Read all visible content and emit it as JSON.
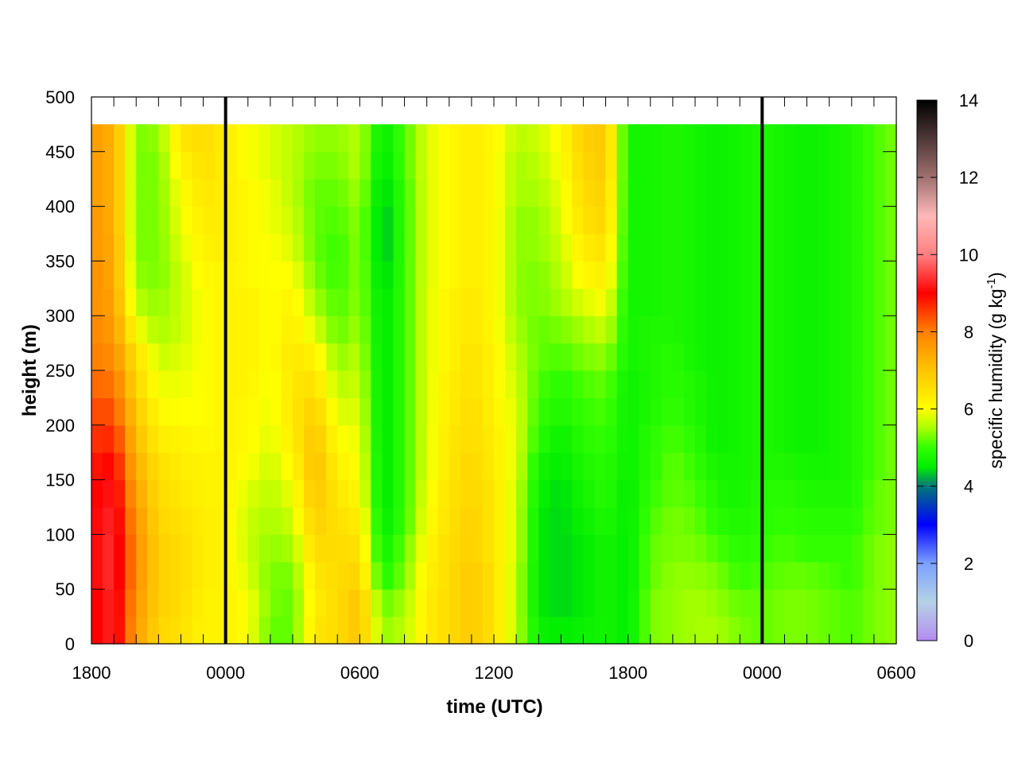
{
  "chart_data": {
    "type": "heatmap",
    "title": "",
    "xlabel": "time (UTC)",
    "ylabel": "height (m)",
    "x_tick_labels": [
      "1800",
      "0000",
      "0600",
      "1200",
      "1800",
      "0000",
      "0600"
    ],
    "x_range_hours": [
      0,
      36
    ],
    "y_ticks": [
      0,
      50,
      100,
      150,
      200,
      250,
      300,
      350,
      400,
      450,
      500
    ],
    "ylim": [
      0,
      500
    ],
    "data_top_height": 475,
    "day_boundaries_hours": [
      6,
      30
    ],
    "colorbar": {
      "label": "specific humidity (g kg",
      "label_sup": "-1",
      "label_close": ")",
      "ticks": [
        0,
        2,
        4,
        6,
        8,
        10,
        12,
        14
      ],
      "range": [
        0,
        14
      ]
    },
    "heights": [
      0,
      25,
      50,
      75,
      100,
      125,
      150,
      175,
      200,
      225,
      250,
      275,
      300,
      325,
      350,
      375,
      400,
      425,
      450,
      475
    ],
    "humidity_profiles": [
      {
        "t": 0,
        "q": [
          8.9,
          8.9,
          9.0,
          9.0,
          9.0,
          8.9,
          8.8,
          8.6,
          8.4,
          8.2,
          8.0,
          7.9,
          7.8,
          7.8,
          7.7,
          7.7,
          7.6,
          7.6,
          7.6,
          7.5
        ]
      },
      {
        "t": 1,
        "q": [
          9.3,
          9.3,
          9.4,
          9.4,
          9.3,
          9.2,
          9.0,
          8.7,
          8.4,
          8.1,
          7.8,
          7.6,
          7.5,
          7.4,
          7.4,
          7.3,
          7.3,
          7.3,
          7.3,
          7.2
        ]
      },
      {
        "t": 2,
        "q": [
          7.6,
          7.7,
          7.8,
          7.8,
          7.7,
          7.5,
          7.3,
          7.1,
          6.9,
          6.7,
          6.5,
          6.0,
          5.6,
          5.4,
          5.3,
          5.3,
          5.3,
          5.3,
          5.3,
          5.3
        ]
      },
      {
        "t": 3,
        "q": [
          6.7,
          6.8,
          6.8,
          6.8,
          6.7,
          6.6,
          6.5,
          6.3,
          6.1,
          5.9,
          5.7,
          5.5,
          5.4,
          5.3,
          5.3,
          5.3,
          5.3,
          5.3,
          5.4,
          5.5
        ]
      },
      {
        "t": 4,
        "q": [
          6.5,
          6.6,
          6.6,
          6.6,
          6.5,
          6.4,
          6.3,
          6.2,
          6.0,
          5.9,
          5.8,
          5.7,
          5.7,
          5.7,
          5.8,
          5.9,
          6.0,
          6.2,
          6.4,
          6.5
        ]
      },
      {
        "t": 5,
        "q": [
          6.2,
          6.2,
          6.3,
          6.3,
          6.3,
          6.2,
          6.2,
          6.1,
          6.0,
          6.0,
          6.0,
          6.0,
          6.0,
          6.1,
          6.2,
          6.3,
          6.4,
          6.5,
          6.6,
          6.7
        ]
      },
      {
        "t": 6,
        "q": [
          6.2,
          6.2,
          6.2,
          6.2,
          6.2,
          6.2,
          6.2,
          6.2,
          6.2,
          6.2,
          6.2,
          6.2,
          6.2,
          6.2,
          6.3,
          6.3,
          6.3,
          6.3,
          6.3,
          6.3
        ]
      },
      {
        "t": 7,
        "q": [
          6.0,
          6.0,
          5.8,
          5.7,
          5.7,
          5.8,
          6.0,
          6.1,
          6.1,
          6.2,
          6.2,
          6.2,
          6.2,
          6.1,
          6.1,
          6.1,
          6.1,
          6.0,
          6.0,
          6.0
        ]
      },
      {
        "t": 8,
        "q": [
          5.2,
          5.3,
          5.3,
          5.4,
          5.5,
          5.6,
          5.7,
          5.8,
          5.9,
          5.9,
          6.0,
          6.0,
          6.0,
          6.0,
          6.0,
          5.9,
          5.9,
          5.8,
          5.8,
          5.8
        ]
      },
      {
        "t": 9,
        "q": [
          5.2,
          5.2,
          5.3,
          5.5,
          5.7,
          5.9,
          6.1,
          6.3,
          6.4,
          6.4,
          6.4,
          6.3,
          6.2,
          6.0,
          5.8,
          5.7,
          5.6,
          5.6,
          5.6,
          5.7
        ]
      },
      {
        "t": 10,
        "q": [
          6.4,
          6.3,
          6.4,
          6.6,
          6.8,
          7.0,
          7.1,
          7.0,
          6.8,
          6.5,
          6.2,
          5.8,
          5.5,
          5.3,
          5.2,
          5.2,
          5.2,
          5.3,
          5.4,
          5.6
        ]
      },
      {
        "t": 11,
        "q": [
          6.6,
          6.6,
          6.6,
          6.6,
          6.5,
          6.4,
          6.2,
          6.0,
          5.8,
          5.6,
          5.4,
          5.2,
          5.1,
          5.0,
          5.0,
          5.1,
          5.2,
          5.3,
          5.4,
          5.5
        ]
      },
      {
        "t": 12,
        "q": [
          7.0,
          7.0,
          6.7,
          6.5,
          6.3,
          6.1,
          6.0,
          5.9,
          5.8,
          5.7,
          5.6,
          5.5,
          5.4,
          5.4,
          5.4,
          5.4,
          5.5,
          5.6,
          5.6,
          5.6
        ]
      },
      {
        "t": 13,
        "q": [
          5.4,
          5.2,
          4.8,
          4.6,
          4.5,
          4.4,
          4.4,
          4.4,
          4.4,
          4.4,
          4.4,
          4.4,
          4.4,
          4.3,
          4.2,
          4.2,
          4.3,
          4.4,
          4.5,
          4.6
        ]
      },
      {
        "t": 14,
        "q": [
          5.6,
          5.5,
          5.3,
          5.2,
          5.0,
          5.0,
          5.0,
          5.0,
          5.0,
          5.0,
          5.0,
          5.0,
          5.0,
          5.0,
          5.0,
          5.0,
          5.0,
          5.1,
          5.1,
          5.1
        ]
      },
      {
        "t": 15,
        "q": [
          6.3,
          6.3,
          6.2,
          6.1,
          6.0,
          5.9,
          5.8,
          5.8,
          5.8,
          5.8,
          5.8,
          5.8,
          5.8,
          5.8,
          5.8,
          5.8,
          5.8,
          5.8,
          5.8,
          5.8
        ]
      },
      {
        "t": 16,
        "q": [
          6.6,
          6.6,
          6.6,
          6.6,
          6.5,
          6.5,
          6.4,
          6.4,
          6.3,
          6.3,
          6.2,
          6.2,
          6.2,
          6.1,
          6.1,
          6.1,
          6.1,
          6.1,
          6.1,
          6.1
        ]
      },
      {
        "t": 17,
        "q": [
          6.9,
          6.9,
          6.9,
          6.8,
          6.8,
          6.7,
          6.7,
          6.6,
          6.6,
          6.5,
          6.5,
          6.4,
          6.4,
          6.3,
          6.3,
          6.3,
          6.3,
          6.3,
          6.3,
          6.3
        ]
      },
      {
        "t": 18,
        "q": [
          6.5,
          6.5,
          6.5,
          6.4,
          6.4,
          6.4,
          6.3,
          6.3,
          6.2,
          6.2,
          6.2,
          6.1,
          6.1,
          6.1,
          6.1,
          6.1,
          6.1,
          6.1,
          6.1,
          6.1
        ]
      },
      {
        "t": 19,
        "q": [
          5.6,
          5.6,
          5.6,
          5.7,
          5.7,
          5.7,
          5.8,
          5.8,
          5.8,
          5.7,
          5.6,
          5.5,
          5.4,
          5.4,
          5.4,
          5.4,
          5.5,
          5.5,
          5.6,
          5.6
        ]
      },
      {
        "t": 20,
        "q": [
          4.6,
          4.5,
          4.5,
          4.5,
          4.5,
          4.6,
          4.7,
          4.9,
          5.0,
          5.1,
          5.2,
          5.2,
          5.3,
          5.3,
          5.4,
          5.4,
          5.5,
          5.6,
          5.7,
          5.7
        ]
      },
      {
        "t": 21,
        "q": [
          4.5,
          4.4,
          4.4,
          4.4,
          4.4,
          4.4,
          4.5,
          4.6,
          4.8,
          4.9,
          5.1,
          5.3,
          5.5,
          5.6,
          5.7,
          5.8,
          5.9,
          6.0,
          6.1,
          6.1
        ]
      },
      {
        "t": 22,
        "q": [
          4.6,
          4.5,
          4.5,
          4.5,
          4.6,
          4.7,
          4.8,
          4.9,
          5.0,
          5.1,
          5.3,
          5.5,
          5.8,
          6.1,
          6.3,
          6.5,
          6.6,
          6.7,
          6.8,
          6.8
        ]
      },
      {
        "t": 23,
        "q": [
          4.7,
          4.7,
          4.7,
          4.7,
          4.8,
          4.9,
          4.9,
          5.0,
          5.1,
          5.2,
          5.4,
          5.7,
          6.0,
          6.3,
          6.5,
          6.7,
          6.8,
          6.9,
          6.9,
          6.9
        ]
      },
      {
        "t": 24,
        "q": [
          4.5,
          4.5,
          4.5,
          4.5,
          4.5,
          4.5,
          4.6,
          4.6,
          4.6,
          4.6,
          4.7,
          4.7,
          4.7,
          4.7,
          4.7,
          4.7,
          4.7,
          4.7,
          4.7,
          4.7
        ]
      },
      {
        "t": 25,
        "q": [
          5.3,
          5.3,
          5.2,
          5.2,
          5.1,
          5.0,
          4.9,
          4.9,
          4.8,
          4.8,
          4.8,
          4.8,
          4.7,
          4.7,
          4.7,
          4.7,
          4.7,
          4.7,
          4.7,
          4.7
        ]
      },
      {
        "t": 26,
        "q": [
          5.4,
          5.4,
          5.4,
          5.3,
          5.3,
          5.2,
          5.2,
          5.1,
          5.0,
          4.9,
          4.9,
          4.8,
          4.8,
          4.8,
          4.8,
          4.8,
          4.8,
          4.8,
          4.8,
          4.8
        ]
      },
      {
        "t": 27,
        "q": [
          5.5,
          5.5,
          5.4,
          5.3,
          5.2,
          5.1,
          5.0,
          4.9,
          4.8,
          4.8,
          4.7,
          4.7,
          4.7,
          4.7,
          4.7,
          4.7,
          4.7,
          4.7,
          4.7,
          4.7
        ]
      },
      {
        "t": 28,
        "q": [
          5.5,
          5.4,
          5.3,
          5.1,
          4.9,
          4.8,
          4.7,
          4.6,
          4.6,
          4.6,
          4.6,
          4.6,
          4.6,
          4.6,
          4.6,
          4.6,
          4.6,
          4.6,
          4.6,
          4.6
        ]
      },
      {
        "t": 29,
        "q": [
          5.3,
          5.2,
          5.0,
          4.9,
          4.8,
          4.7,
          4.7,
          4.7,
          4.7,
          4.7,
          4.7,
          4.7,
          4.7,
          4.7,
          4.7,
          4.7,
          4.7,
          4.7,
          4.7,
          4.7
        ]
      },
      {
        "t": 30,
        "q": [
          5.2,
          5.2,
          5.1,
          5.0,
          4.9,
          4.9,
          4.8,
          4.8,
          4.8,
          4.8,
          4.8,
          4.8,
          4.8,
          4.8,
          4.8,
          4.8,
          4.8,
          4.8,
          4.8,
          4.8
        ]
      },
      {
        "t": 31,
        "q": [
          5.3,
          5.3,
          5.2,
          5.1,
          5.0,
          4.9,
          4.8,
          4.7,
          4.7,
          4.7,
          4.7,
          4.7,
          4.7,
          4.7,
          4.7,
          4.7,
          4.7,
          4.7,
          4.7,
          4.7
        ]
      },
      {
        "t": 32,
        "q": [
          5.3,
          5.3,
          5.2,
          5.0,
          4.9,
          4.8,
          4.7,
          4.6,
          4.6,
          4.6,
          4.6,
          4.6,
          4.6,
          4.6,
          4.6,
          4.6,
          4.6,
          4.6,
          4.6,
          4.6
        ]
      },
      {
        "t": 33,
        "q": [
          5.2,
          5.2,
          5.1,
          5.0,
          4.9,
          4.8,
          4.7,
          4.7,
          4.7,
          4.7,
          4.7,
          4.7,
          4.7,
          4.7,
          4.7,
          4.7,
          4.7,
          4.7,
          4.7,
          4.7
        ]
      },
      {
        "t": 34,
        "q": [
          5.1,
          5.1,
          5.0,
          5.0,
          4.9,
          4.8,
          4.8,
          4.8,
          4.8,
          4.8,
          4.8,
          4.8,
          4.8,
          4.8,
          4.8,
          4.8,
          4.8,
          4.8,
          4.8,
          4.8
        ]
      },
      {
        "t": 35,
        "q": [
          5.3,
          5.3,
          5.3,
          5.3,
          5.2,
          5.2,
          5.1,
          5.1,
          5.1,
          5.1,
          5.1,
          5.1,
          5.1,
          5.1,
          5.1,
          5.1,
          5.1,
          5.1,
          5.1,
          5.1
        ]
      },
      {
        "t": 36,
        "q": [
          5.4,
          5.4,
          5.4,
          5.4,
          5.3,
          5.3,
          5.3,
          5.3,
          5.3,
          5.3,
          5.3,
          5.3,
          5.3,
          5.3,
          5.3,
          5.3,
          5.3,
          5.3,
          5.3,
          5.3
        ]
      }
    ],
    "color_stops": [
      {
        "v": 0,
        "c": "#b48cf0"
      },
      {
        "v": 1,
        "c": "#b4d2e6"
      },
      {
        "v": 2,
        "c": "#7ca0ff"
      },
      {
        "v": 3,
        "c": "#0000ff"
      },
      {
        "v": 4,
        "c": "#007878"
      },
      {
        "v": 4.5,
        "c": "#00ee00"
      },
      {
        "v": 5,
        "c": "#32ff00"
      },
      {
        "v": 5.5,
        "c": "#a8ff00"
      },
      {
        "v": 6,
        "c": "#ffff00"
      },
      {
        "v": 7,
        "c": "#ffc400"
      },
      {
        "v": 8,
        "c": "#ff8000"
      },
      {
        "v": 9,
        "c": "#ff0000"
      },
      {
        "v": 10,
        "c": "#ff8080"
      },
      {
        "v": 11,
        "c": "#ffb8b8"
      },
      {
        "v": 12,
        "c": "#a07070"
      },
      {
        "v": 14,
        "c": "#000000"
      }
    ]
  }
}
